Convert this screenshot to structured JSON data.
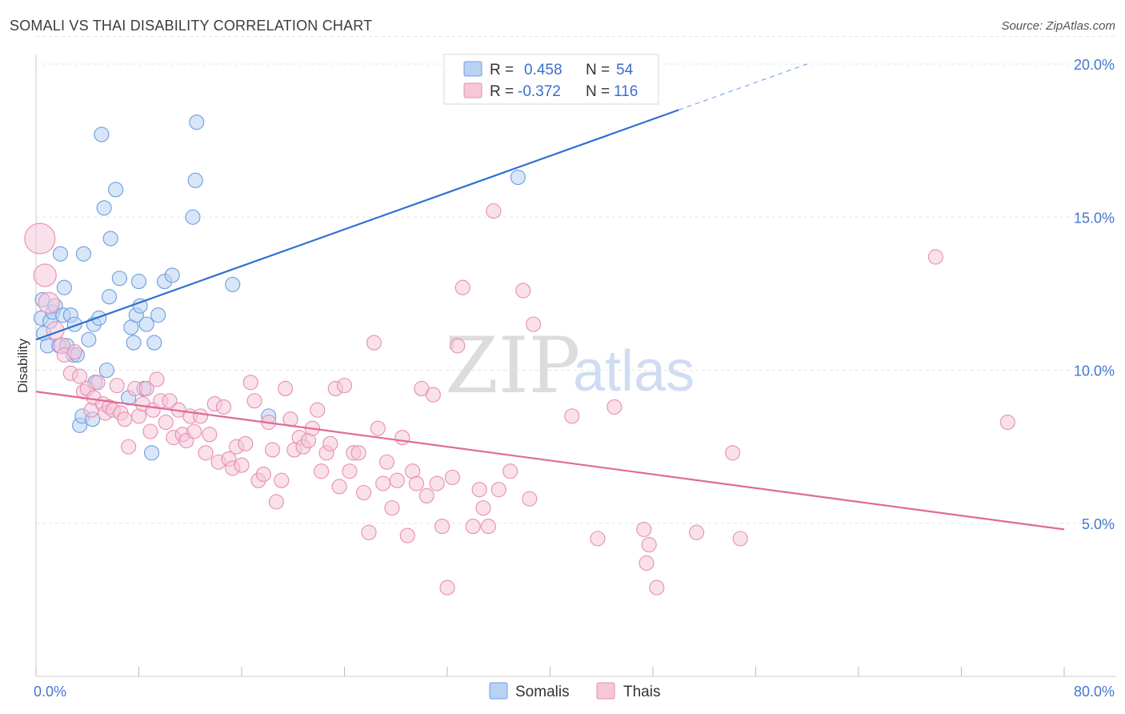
{
  "title": "SOMALI VS THAI DISABILITY CORRELATION CHART",
  "source": "Source: ZipAtlas.com",
  "chart_data": {
    "type": "scatter",
    "title": "SOMALI VS THAI DISABILITY CORRELATION CHART",
    "ylabel": "Disability",
    "xlim": [
      0,
      80
    ],
    "ylim": [
      0,
      21
    ],
    "x_tick_labels": [
      {
        "value": 0,
        "label": "0.0%"
      },
      {
        "value": 80,
        "label": "80.0%"
      }
    ],
    "y_tick_labels": [
      {
        "value": 5,
        "label": "5.0%"
      },
      {
        "value": 10,
        "label": "10.0%"
      },
      {
        "value": 15,
        "label": "15.0%"
      },
      {
        "value": 20,
        "label": "20.0%"
      }
    ],
    "grid": true,
    "legend_position": "top-center",
    "watermark": {
      "zip": "ZIP",
      "atlas": "atlas"
    },
    "series": [
      {
        "name": "Somalis",
        "color": "#6a9de0",
        "fill": "#b9d1f3",
        "legend_r": "0.458",
        "legend_n": "54",
        "trend": {
          "x0": 0,
          "y0": 11.0,
          "x1": 50,
          "y1": 18.5,
          "dash_x1": 60,
          "dash_y1": 20.0,
          "color": "#2f6fd0"
        },
        "points": [
          [
            0.4,
            11.7,
            9
          ],
          [
            0.5,
            12.3,
            9
          ],
          [
            0.6,
            11.2,
            9
          ],
          [
            0.9,
            10.8,
            9
          ],
          [
            1.1,
            11.6,
            9
          ],
          [
            1.3,
            11.9,
            9
          ],
          [
            1.5,
            12.1,
            9
          ],
          [
            1.8,
            10.8,
            9
          ],
          [
            1.9,
            13.8,
            9
          ],
          [
            2.1,
            11.8,
            9
          ],
          [
            2.2,
            12.7,
            9
          ],
          [
            2.4,
            10.8,
            9
          ],
          [
            2.7,
            11.8,
            9
          ],
          [
            2.9,
            10.5,
            9
          ],
          [
            3.0,
            11.5,
            9
          ],
          [
            3.2,
            10.5,
            9
          ],
          [
            3.4,
            8.2,
            9
          ],
          [
            3.6,
            8.5,
            9
          ],
          [
            3.7,
            13.8,
            9
          ],
          [
            4.1,
            11.0,
            9
          ],
          [
            4.4,
            8.4,
            9
          ],
          [
            4.5,
            11.5,
            9
          ],
          [
            4.6,
            9.6,
            9
          ],
          [
            4.9,
            11.7,
            9
          ],
          [
            5.1,
            17.7,
            9
          ],
          [
            5.3,
            15.3,
            9
          ],
          [
            5.5,
            10.0,
            9
          ],
          [
            5.7,
            12.4,
            9
          ],
          [
            5.8,
            14.3,
            9
          ],
          [
            6.2,
            15.9,
            9
          ],
          [
            6.5,
            13.0,
            9
          ],
          [
            7.2,
            9.1,
            9
          ],
          [
            7.4,
            11.4,
            9
          ],
          [
            7.6,
            10.9,
            9
          ],
          [
            7.8,
            11.8,
            9
          ],
          [
            8.0,
            12.9,
            9
          ],
          [
            8.1,
            12.1,
            9
          ],
          [
            8.4,
            9.4,
            9
          ],
          [
            8.6,
            11.5,
            9
          ],
          [
            9.0,
            7.3,
            9
          ],
          [
            9.2,
            10.9,
            9
          ],
          [
            9.5,
            11.8,
            9
          ],
          [
            10.0,
            12.9,
            9
          ],
          [
            10.6,
            13.1,
            9
          ],
          [
            12.2,
            15.0,
            9
          ],
          [
            12.4,
            16.2,
            9
          ],
          [
            12.5,
            18.1,
            9
          ],
          [
            15.3,
            12.8,
            9
          ],
          [
            18.1,
            8.5,
            9
          ],
          [
            37.5,
            16.3,
            9
          ],
          [
            41.8,
            19.3,
            9
          ]
        ]
      },
      {
        "name": "Thais",
        "color": "#e58fb0",
        "fill": "#f6c7d8",
        "legend_r": "-0.372",
        "legend_n": "116",
        "trend": {
          "x0": 0,
          "y0": 9.3,
          "x1": 80,
          "y1": 4.8,
          "color": "#e06a98"
        },
        "points": [
          [
            0.3,
            14.3,
            19
          ],
          [
            0.7,
            13.1,
            14
          ],
          [
            1.0,
            12.2,
            13
          ],
          [
            1.5,
            11.3,
            11
          ],
          [
            2.0,
            10.8,
            10
          ],
          [
            2.2,
            10.5,
            9
          ],
          [
            2.7,
            9.9,
            9
          ],
          [
            3.0,
            10.6,
            9
          ],
          [
            3.4,
            9.8,
            9
          ],
          [
            3.7,
            9.3,
            9
          ],
          [
            4.0,
            9.4,
            9
          ],
          [
            4.3,
            8.7,
            9
          ],
          [
            4.5,
            9.1,
            9
          ],
          [
            4.8,
            9.6,
            9
          ],
          [
            5.2,
            8.9,
            9
          ],
          [
            5.4,
            8.6,
            9
          ],
          [
            5.7,
            8.8,
            9
          ],
          [
            6.0,
            8.7,
            9
          ],
          [
            6.3,
            9.5,
            9
          ],
          [
            6.6,
            8.6,
            9
          ],
          [
            6.9,
            8.4,
            9
          ],
          [
            7.2,
            7.5,
            9
          ],
          [
            7.7,
            9.4,
            9
          ],
          [
            8.0,
            8.5,
            9
          ],
          [
            8.3,
            8.9,
            9
          ],
          [
            8.6,
            9.4,
            9
          ],
          [
            8.9,
            8.0,
            9
          ],
          [
            9.1,
            8.7,
            9
          ],
          [
            9.4,
            9.7,
            9
          ],
          [
            9.7,
            9.0,
            9
          ],
          [
            10.1,
            8.3,
            9
          ],
          [
            10.4,
            9.0,
            9
          ],
          [
            10.7,
            7.8,
            9
          ],
          [
            11.1,
            8.7,
            9
          ],
          [
            11.4,
            7.9,
            9
          ],
          [
            11.7,
            7.7,
            9
          ],
          [
            12.0,
            8.5,
            9
          ],
          [
            12.3,
            8.0,
            9
          ],
          [
            12.8,
            8.5,
            9
          ],
          [
            13.2,
            7.3,
            9
          ],
          [
            13.5,
            7.9,
            9
          ],
          [
            13.9,
            8.9,
            9
          ],
          [
            14.2,
            7.0,
            9
          ],
          [
            14.6,
            8.8,
            9
          ],
          [
            15.0,
            7.1,
            9
          ],
          [
            15.3,
            6.8,
            9
          ],
          [
            15.6,
            7.5,
            9
          ],
          [
            16.0,
            6.9,
            9
          ],
          [
            16.3,
            7.6,
            9
          ],
          [
            16.7,
            9.6,
            9
          ],
          [
            17.0,
            9.0,
            9
          ],
          [
            17.3,
            6.4,
            9
          ],
          [
            17.7,
            6.6,
            9
          ],
          [
            18.1,
            8.3,
            9
          ],
          [
            18.4,
            7.4,
            9
          ],
          [
            18.7,
            5.7,
            9
          ],
          [
            19.1,
            6.4,
            9
          ],
          [
            19.4,
            9.4,
            9
          ],
          [
            19.8,
            8.4,
            9
          ],
          [
            20.1,
            7.4,
            9
          ],
          [
            20.5,
            7.8,
            9
          ],
          [
            20.8,
            7.5,
            9
          ],
          [
            21.2,
            7.7,
            9
          ],
          [
            21.5,
            8.1,
            9
          ],
          [
            21.9,
            8.7,
            9
          ],
          [
            22.2,
            6.7,
            9
          ],
          [
            22.6,
            7.3,
            9
          ],
          [
            22.9,
            7.6,
            9
          ],
          [
            23.3,
            9.4,
            9
          ],
          [
            23.6,
            6.2,
            9
          ],
          [
            24.0,
            9.5,
            9
          ],
          [
            24.4,
            6.7,
            9
          ],
          [
            24.7,
            7.3,
            9
          ],
          [
            25.1,
            7.3,
            9
          ],
          [
            25.5,
            6.0,
            9
          ],
          [
            25.9,
            4.7,
            9
          ],
          [
            26.3,
            10.9,
            9
          ],
          [
            26.6,
            8.1,
            9
          ],
          [
            27.0,
            6.3,
            9
          ],
          [
            27.3,
            7.0,
            9
          ],
          [
            27.7,
            5.5,
            9
          ],
          [
            28.1,
            6.4,
            9
          ],
          [
            28.5,
            7.8,
            9
          ],
          [
            28.9,
            4.6,
            9
          ],
          [
            29.3,
            6.7,
            9
          ],
          [
            29.6,
            6.3,
            9
          ],
          [
            30.0,
            9.4,
            9
          ],
          [
            30.4,
            5.9,
            9
          ],
          [
            30.9,
            9.2,
            9
          ],
          [
            31.2,
            6.3,
            9
          ],
          [
            31.6,
            4.9,
            9
          ],
          [
            32.0,
            2.9,
            9
          ],
          [
            32.4,
            6.5,
            9
          ],
          [
            32.8,
            10.8,
            9
          ],
          [
            33.2,
            12.7,
            9
          ],
          [
            34.0,
            4.9,
            9
          ],
          [
            34.5,
            6.1,
            9
          ],
          [
            34.8,
            5.5,
            9
          ],
          [
            35.2,
            4.9,
            9
          ],
          [
            35.6,
            15.2,
            9
          ],
          [
            36.0,
            6.1,
            9
          ],
          [
            36.9,
            6.7,
            9
          ],
          [
            37.9,
            12.6,
            9
          ],
          [
            38.4,
            5.8,
            9
          ],
          [
            38.7,
            11.5,
            9
          ],
          [
            41.7,
            8.5,
            9
          ],
          [
            43.7,
            4.5,
            9
          ],
          [
            45.0,
            8.8,
            9
          ],
          [
            47.3,
            4.8,
            9
          ],
          [
            47.5,
            3.7,
            9
          ],
          [
            47.7,
            4.3,
            9
          ],
          [
            48.3,
            2.9,
            9
          ],
          [
            51.4,
            4.7,
            9
          ],
          [
            54.2,
            7.3,
            9
          ],
          [
            54.8,
            4.5,
            9
          ],
          [
            70.0,
            13.7,
            9
          ],
          [
            75.6,
            8.3,
            9
          ]
        ]
      }
    ]
  }
}
